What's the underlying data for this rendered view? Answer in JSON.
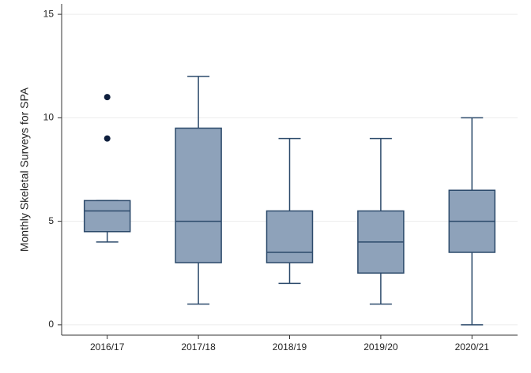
{
  "chart_data": {
    "type": "box",
    "y_label": "Monthly Skeletal Surveys for SPA",
    "categories": [
      "2016/17",
      "2017/18",
      "2018/19",
      "2019/20",
      "2020/21"
    ],
    "boxes": [
      {
        "whislo": 4,
        "q1": 4.5,
        "med": 5.5,
        "q3": 6,
        "whishi": 6,
        "fliers": [
          9,
          11
        ]
      },
      {
        "whislo": 1,
        "q1": 3,
        "med": 5,
        "q3": 9.5,
        "whishi": 12,
        "fliers": []
      },
      {
        "whislo": 2,
        "q1": 3,
        "med": 3.5,
        "q3": 5.5,
        "whishi": 9,
        "fliers": []
      },
      {
        "whislo": 1,
        "q1": 2.5,
        "med": 4,
        "q3": 5.5,
        "whishi": 9,
        "fliers": []
      },
      {
        "whislo": 0,
        "q1": 3.5,
        "med": 5,
        "q3": 6.5,
        "whishi": 10,
        "fliers": []
      }
    ],
    "color": "#8ea2ba",
    "edge_color": "#2c4a6b",
    "flier_color": "#0e1f3d",
    "ylim": [
      -0.5,
      15.5
    ],
    "yticks": [
      0,
      5,
      10,
      15
    ],
    "grid": true
  }
}
